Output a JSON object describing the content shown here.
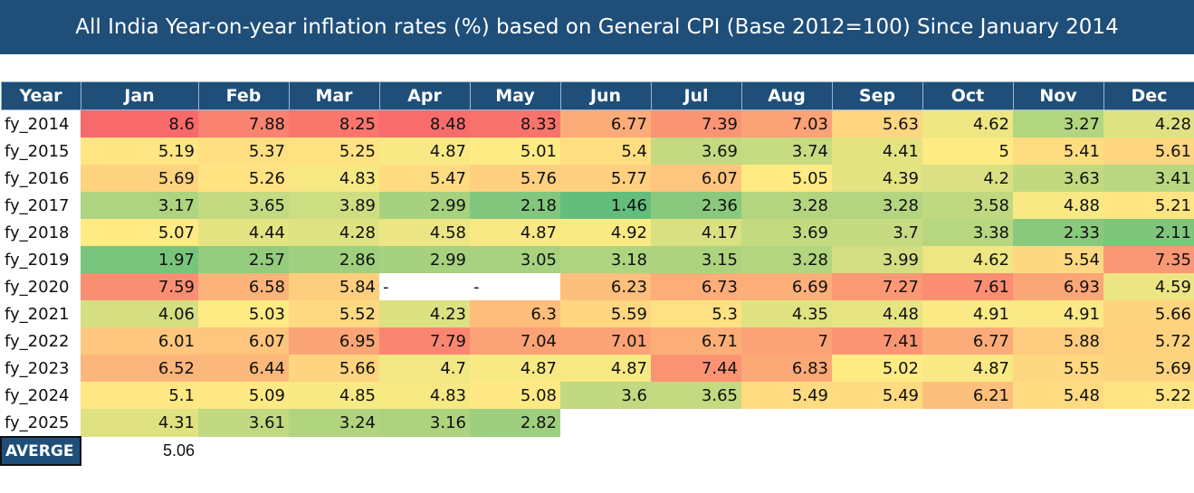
{
  "chart_data": {
    "type": "heatmap",
    "title": "All India Year-on-year inflation rates (%) based on General CPI (Base 2012=100) Since January 2014",
    "row_header": "Year",
    "columns": [
      "Jan",
      "Feb",
      "Mar",
      "Apr",
      "May",
      "Jun",
      "Jul",
      "Aug",
      "Sep",
      "Oct",
      "Nov",
      "Dec"
    ],
    "rows": [
      {
        "year": "fy_2014",
        "values": [
          8.6,
          7.88,
          8.25,
          8.48,
          8.33,
          6.77,
          7.39,
          7.03,
          5.63,
          4.62,
          3.27,
          4.28
        ]
      },
      {
        "year": "fy_2015",
        "values": [
          5.19,
          5.37,
          5.25,
          4.87,
          5.01,
          5.4,
          3.69,
          3.74,
          4.41,
          5,
          5.41,
          5.61
        ]
      },
      {
        "year": "fy_2016",
        "values": [
          5.69,
          5.26,
          4.83,
          5.47,
          5.76,
          5.77,
          6.07,
          5.05,
          4.39,
          4.2,
          3.63,
          3.41
        ]
      },
      {
        "year": "fy_2017",
        "values": [
          3.17,
          3.65,
          3.89,
          2.99,
          2.18,
          1.46,
          2.36,
          3.28,
          3.28,
          3.58,
          4.88,
          5.21
        ]
      },
      {
        "year": "fy_2018",
        "values": [
          5.07,
          4.44,
          4.28,
          4.58,
          4.87,
          4.92,
          4.17,
          3.69,
          3.7,
          3.38,
          2.33,
          2.11
        ]
      },
      {
        "year": "fy_2019",
        "values": [
          1.97,
          2.57,
          2.86,
          2.99,
          3.05,
          3.18,
          3.15,
          3.28,
          3.99,
          4.62,
          5.54,
          7.35
        ]
      },
      {
        "year": "fy_2020",
        "values": [
          7.59,
          6.58,
          5.84,
          "-",
          "-",
          6.23,
          6.73,
          6.69,
          7.27,
          7.61,
          6.93,
          4.59
        ]
      },
      {
        "year": "fy_2021",
        "values": [
          4.06,
          5.03,
          5.52,
          4.23,
          6.3,
          5.59,
          5.3,
          4.35,
          4.48,
          4.91,
          4.91,
          5.66
        ]
      },
      {
        "year": "fy_2022",
        "values": [
          6.01,
          6.07,
          6.95,
          7.79,
          7.04,
          7.01,
          6.71,
          7,
          7.41,
          6.77,
          5.88,
          5.72
        ]
      },
      {
        "year": "fy_2023",
        "values": [
          6.52,
          6.44,
          5.66,
          4.7,
          4.87,
          4.87,
          7.44,
          6.83,
          5.02,
          4.87,
          5.55,
          5.69
        ]
      },
      {
        "year": "fy_2024",
        "values": [
          5.1,
          5.09,
          4.85,
          4.83,
          5.08,
          3.6,
          3.65,
          5.49,
          5.49,
          6.21,
          5.48,
          5.22
        ]
      },
      {
        "year": "fy_2025",
        "values": [
          4.31,
          3.61,
          3.24,
          3.16,
          2.82,
          null,
          null,
          null,
          null,
          null,
          null,
          null
        ]
      }
    ],
    "average": {
      "label": "AVERGE",
      "value": "5.06"
    },
    "color_scale": {
      "min_color": "#63be7b",
      "mid_color": "#ffeb84",
      "max_color": "#f8696b"
    },
    "header_color": "#1f4e79"
  }
}
